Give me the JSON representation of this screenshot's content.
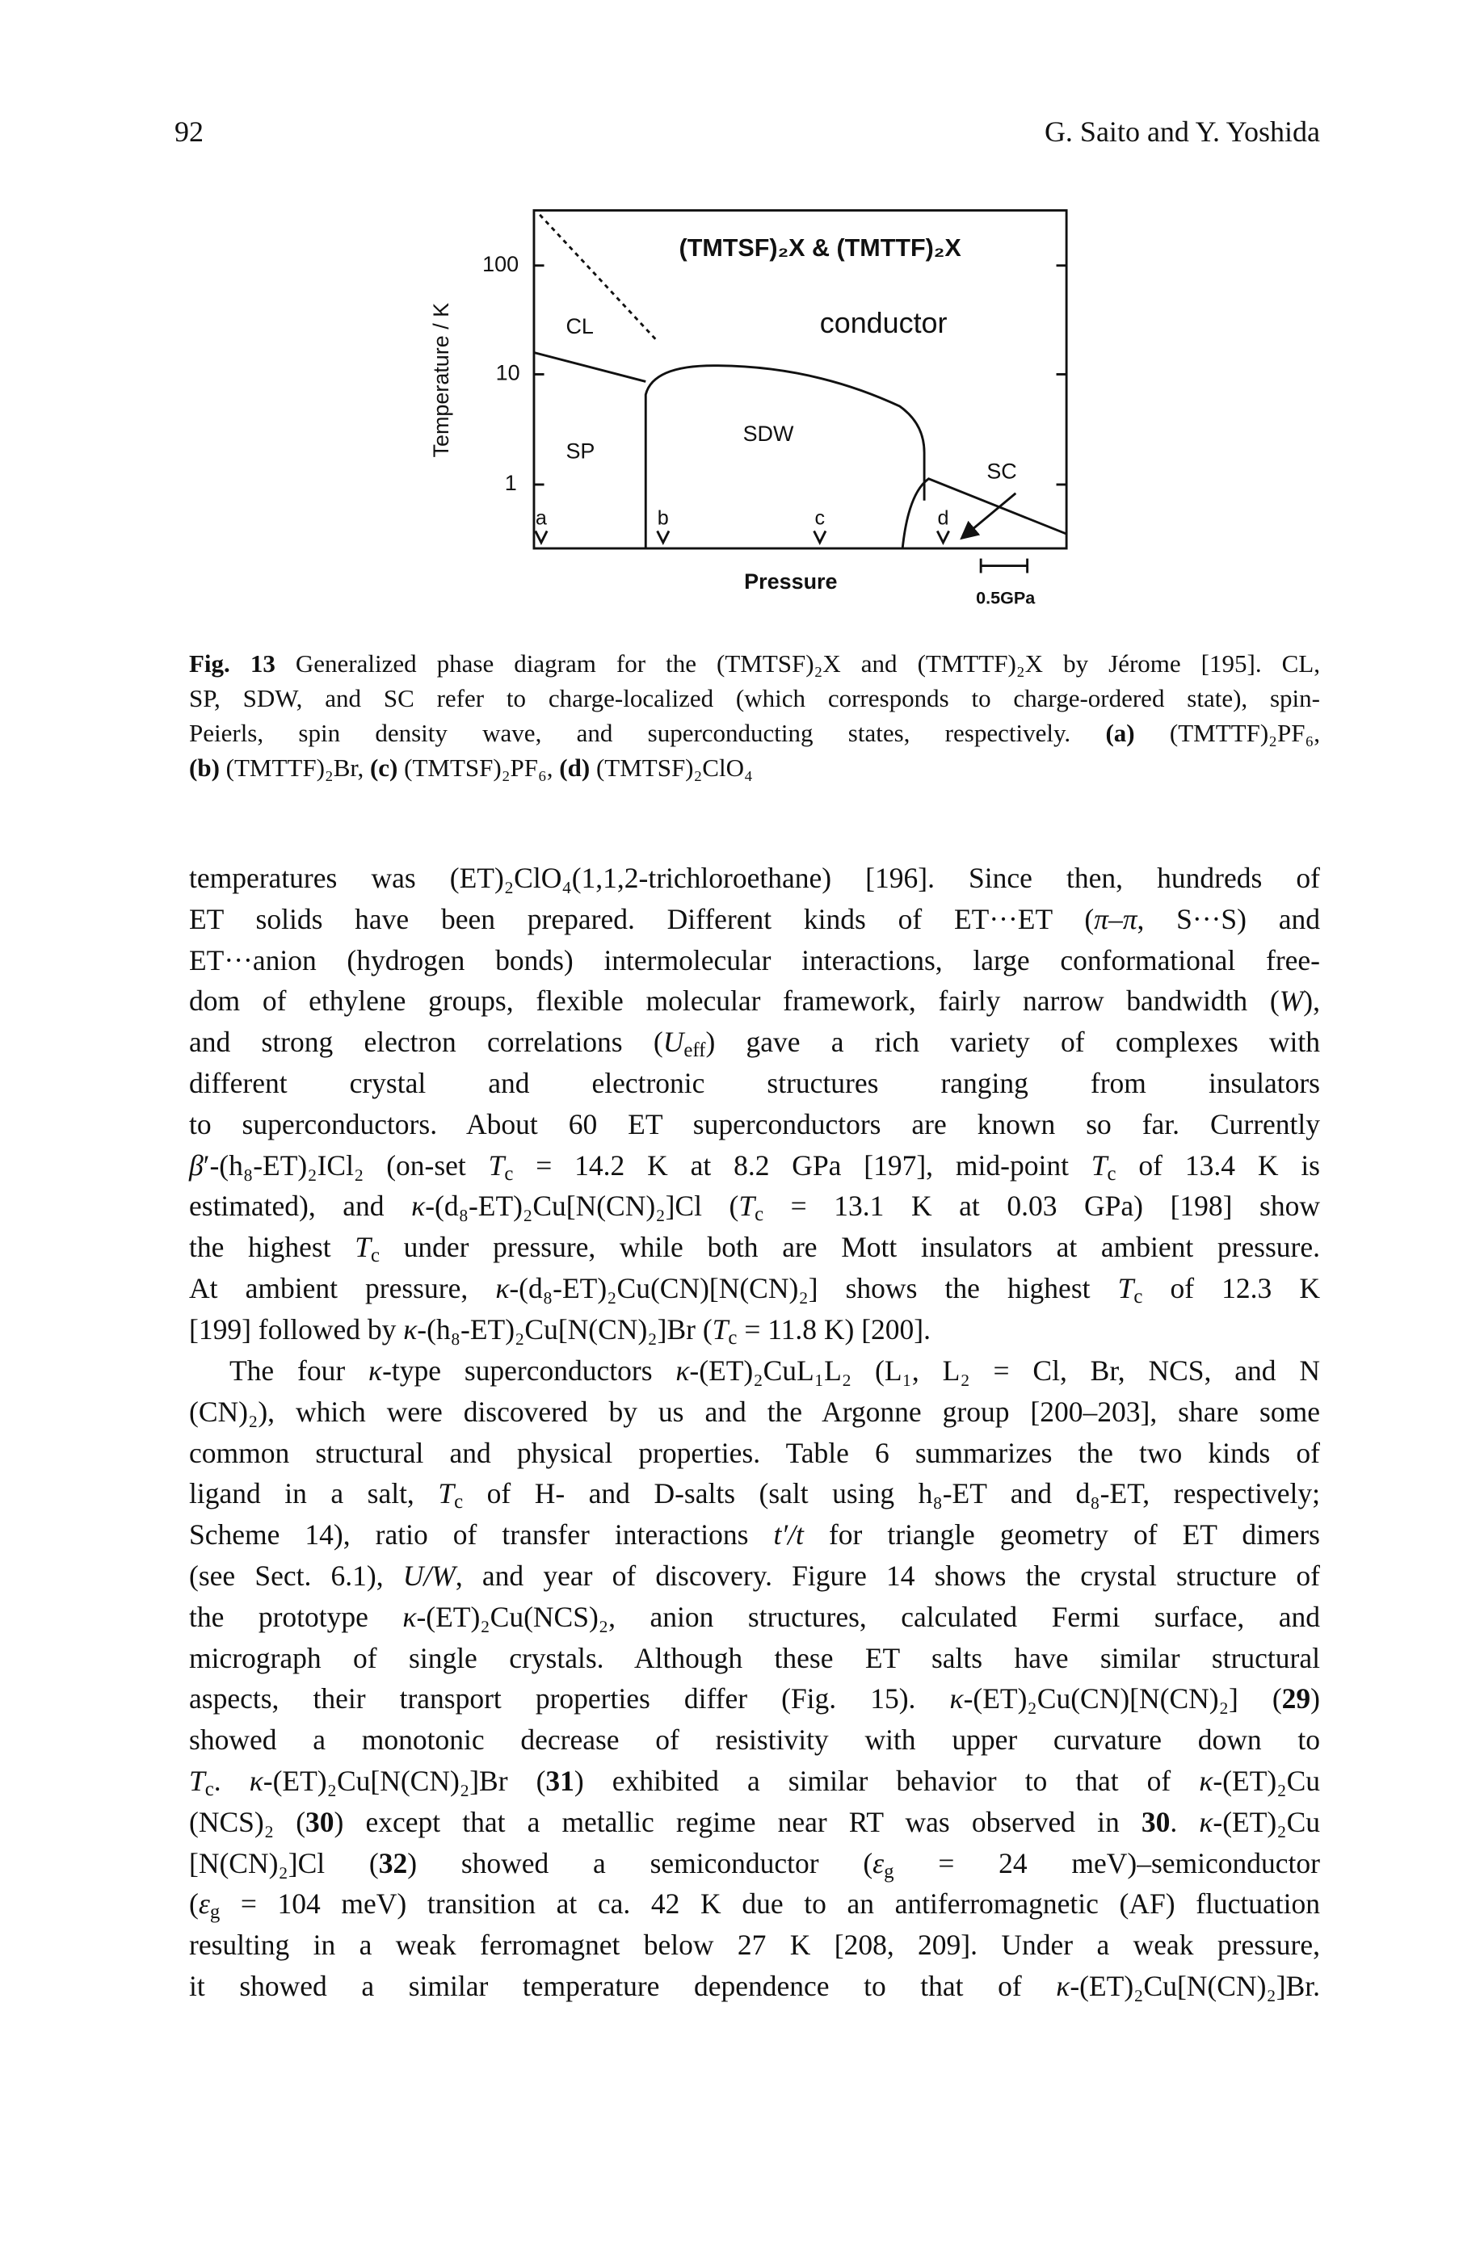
{
  "header": {
    "page_number": "92",
    "authors": "G. Saito and Y. Yoshida"
  },
  "figure": {
    "title": "(TMTSF)₂X & (TMTTF)₂X",
    "y_axis_label": "Temperature / K",
    "y_ticks": [
      "100",
      "10",
      "1"
    ],
    "x_axis_label": "Pressure",
    "scale_bar": "0.5GPa",
    "regions": {
      "conductor": "conductor",
      "cl": "CL",
      "sp": "SP",
      "sdw": "SDW",
      "sc": "SC"
    },
    "markers": [
      "a",
      "b",
      "c",
      "d"
    ]
  },
  "caption": {
    "lines": [
      [
        {
          "b": "Fig. 13"
        },
        " Generalized phase diagram for the (TMTSF)₂X and (TMTTF)₂X by Jérome [195]. CL,"
      ],
      [
        "SP, SDW, and SC refer to charge-localized (which corresponds to charge-ordered state), spin-"
      ],
      [
        "Peierls, spin density wave, and superconducting states, respectively. ",
        {
          "b": "(a)"
        },
        " (TMTTF)₂PF₆,"
      ],
      [
        {
          "b": "(b)"
        },
        " (TMTTF)₂Br, ",
        {
          "b": "(c)"
        },
        " (TMTSF)₂PF₆, ",
        {
          "b": "(d)"
        },
        " (TMTSF)₂ClO₄"
      ]
    ]
  },
  "body": {
    "paragraphs": [
      {
        "lines": [
          [
            "temperatures was (ET)₂ClO₄(1,1,2-trichloroethane) [196]. Since then, hundreds of"
          ],
          [
            "ET solids have been prepared. Different kinds of ET···ET (",
            {
              "i": "π"
            },
            "–",
            {
              "i": "π"
            },
            ", S···S) and"
          ],
          [
            "ET···anion (hydrogen bonds) intermolecular interactions, large conformational free-"
          ],
          [
            "dom of ethylene groups, flexible molecular framework, fairly narrow bandwidth (",
            {
              "i": "W"
            },
            "),"
          ],
          [
            "and strong electron correlations (",
            {
              "i": "U"
            },
            {
              "sub": "eff"
            },
            ") gave a rich variety of complexes with"
          ],
          [
            "different crystal and electronic structures ranging from insulators"
          ],
          [
            "to superconductors. About 60 ET superconductors are known so far. Currently"
          ],
          [
            {
              "i": "β"
            },
            "′-(h₈-ET)₂ICl₂ (on-set ",
            {
              "i": "T"
            },
            {
              "sub": "c"
            },
            " = 14.2 K at 8.2 GPa [197], mid-point ",
            {
              "i": "T"
            },
            {
              "sub": "c"
            },
            " of 13.4 K is"
          ],
          [
            "estimated), and ",
            {
              "i": "κ"
            },
            "-(d₈-ET)₂Cu[N(CN)₂]Cl (",
            {
              "i": "T"
            },
            {
              "sub": "c"
            },
            " = 13.1 K at 0.03 GPa) [198] show"
          ],
          [
            "the highest ",
            {
              "i": "T"
            },
            {
              "sub": "c"
            },
            " under pressure, while both are Mott insulators at ambient pressure."
          ],
          [
            "At ambient pressure, ",
            {
              "i": "κ"
            },
            "-(d₈-ET)₂Cu(CN)[N(CN)₂] shows the highest ",
            {
              "i": "T"
            },
            {
              "sub": "c"
            },
            " of 12.3 K"
          ],
          [
            "[199] followed by ",
            {
              "i": "κ"
            },
            "-(h₈-ET)₂Cu[N(CN)₂]Br (",
            {
              "i": "T"
            },
            {
              "sub": "c"
            },
            " = 11.8 K) [200]."
          ]
        ]
      },
      {
        "lines": [
          [
            "The four ",
            {
              "i": "κ"
            },
            "-type superconductors ",
            {
              "i": "κ"
            },
            "-(ET)₂CuL₁L₂ (L₁, L₂ = Cl, Br, NCS, and N"
          ],
          [
            "(CN)₂), which were discovered by us and the Argonne group [200–203], share some"
          ],
          [
            "common structural and physical properties. Table 6 summarizes the two kinds of"
          ],
          [
            "ligand in a salt, ",
            {
              "i": "T"
            },
            {
              "sub": "c"
            },
            " of H- and D-salts (salt using h₈-ET and d₈-ET, respectively;"
          ],
          [
            "Scheme 14), ratio of transfer interactions ",
            {
              "i": "t′/t"
            },
            " for triangle geometry of ET dimers"
          ],
          [
            "(see Sect. 6.1), ",
            {
              "i": "U/W"
            },
            ", and year of discovery. Figure 14 shows the crystal structure of"
          ],
          [
            "the prototype ",
            {
              "i": "κ"
            },
            "-(ET)₂Cu(NCS)₂, anion structures, calculated Fermi surface, and"
          ],
          [
            "micrograph of single crystals. Although these ET salts have similar structural"
          ],
          [
            "aspects, their transport properties differ (Fig. 15). ",
            {
              "i": "κ"
            },
            "-(ET)₂Cu(CN)[N(CN)₂] (",
            {
              "b": "29"
            },
            ")"
          ],
          [
            "showed a monotonic decrease of resistivity with upper curvature down to"
          ],
          [
            {
              "i": "T"
            },
            {
              "sub": "c"
            },
            ". ",
            {
              "i": "κ"
            },
            "-(ET)₂Cu[N(CN)₂]Br (",
            {
              "b": "31"
            },
            ") exhibited a similar behavior to that of ",
            {
              "i": "κ"
            },
            "-(ET)₂Cu"
          ],
          [
            "(NCS)₂ (",
            {
              "b": "30"
            },
            ") except that a metallic regime near RT was observed in ",
            {
              "b": "30"
            },
            ". ",
            {
              "i": "κ"
            },
            "-(ET)₂Cu"
          ],
          [
            "[N(CN)₂]Cl (",
            {
              "b": "32"
            },
            ") showed a semiconductor (",
            {
              "i": "ε"
            },
            {
              "sub": "g"
            },
            " = 24 meV)–semiconductor"
          ],
          [
            "(",
            {
              "i": "ε"
            },
            {
              "sub": "g"
            },
            " = 104 meV) transition at ca. 42 K due to an antiferromagnetic (AF) fluctuation"
          ],
          [
            "resulting in a weak ferromagnet below 27 K [208, 209]. Under a weak pressure,"
          ],
          [
            "it showed a similar temperature dependence to that of ",
            {
              "i": "κ"
            },
            "-(ET)₂Cu[N(CN)₂]Br."
          ]
        ]
      }
    ]
  }
}
